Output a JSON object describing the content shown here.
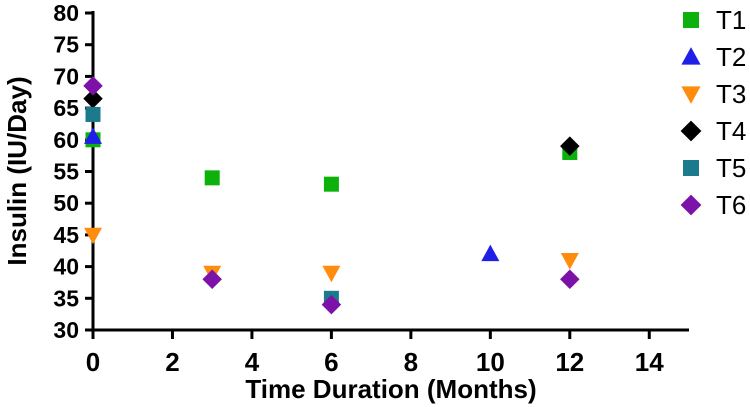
{
  "chart_data": {
    "type": "scatter",
    "title": "",
    "xlabel": "Time Duration (Months)",
    "ylabel": "Insulin (IU/Day)",
    "xlim": [
      0,
      15
    ],
    "ylim": [
      30,
      80
    ],
    "xticks": [
      0,
      2,
      4,
      6,
      8,
      10,
      12,
      14
    ],
    "yticks": [
      30,
      35,
      40,
      45,
      50,
      55,
      60,
      65,
      70,
      75,
      80
    ],
    "grid": false,
    "legend_position": "right",
    "axis_color": "#000000",
    "background_color": "#ffffff",
    "series": [
      {
        "name": "T1",
        "marker": "square",
        "color": "#0cb10c",
        "points": [
          [
            0,
            60
          ],
          [
            3,
            54
          ],
          [
            6,
            53
          ],
          [
            12,
            58
          ]
        ]
      },
      {
        "name": "T2",
        "marker": "triangle-up",
        "color": "#1f1fe8",
        "points": [
          [
            0,
            60.5
          ],
          [
            10,
            42
          ]
        ]
      },
      {
        "name": "T3",
        "marker": "triangle-down",
        "color": "#ff8c0d",
        "points": [
          [
            0,
            45
          ],
          [
            3,
            39
          ],
          [
            6,
            39
          ],
          [
            12,
            41
          ]
        ]
      },
      {
        "name": "T4",
        "marker": "diamond",
        "color": "#000000",
        "points": [
          [
            0,
            66.5
          ],
          [
            12,
            59
          ]
        ]
      },
      {
        "name": "T5",
        "marker": "square",
        "color": "#1b7a8c",
        "points": [
          [
            0,
            64
          ],
          [
            6,
            35
          ]
        ]
      },
      {
        "name": "T6",
        "marker": "diamond",
        "color": "#7d12a8",
        "points": [
          [
            0,
            68.5
          ],
          [
            3,
            38
          ],
          [
            6,
            34
          ],
          [
            12,
            38
          ]
        ]
      }
    ]
  }
}
